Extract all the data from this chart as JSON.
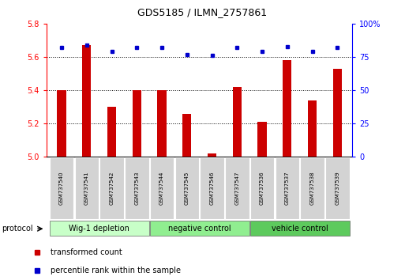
{
  "title": "GDS5185 / ILMN_2757861",
  "samples": [
    "GSM737540",
    "GSM737541",
    "GSM737542",
    "GSM737543",
    "GSM737544",
    "GSM737545",
    "GSM737546",
    "GSM737547",
    "GSM737536",
    "GSM737537",
    "GSM737538",
    "GSM737539"
  ],
  "bar_values": [
    5.4,
    5.67,
    5.3,
    5.4,
    5.4,
    5.26,
    5.02,
    5.42,
    5.21,
    5.58,
    5.34,
    5.53
  ],
  "bar_base": 5.0,
  "dot_values": [
    82,
    84,
    79,
    82,
    82,
    77,
    76,
    82,
    79,
    83,
    79,
    82
  ],
  "ylim_left": [
    5.0,
    5.8
  ],
  "ylim_right": [
    0,
    100
  ],
  "yticks_left": [
    5.0,
    5.2,
    5.4,
    5.6,
    5.8
  ],
  "yticks_right": [
    0,
    25,
    50,
    75,
    100
  ],
  "bar_color": "#cc0000",
  "dot_color": "#0000cc",
  "groups": [
    {
      "label": "Wig-1 depletion",
      "start": 0,
      "end": 4
    },
    {
      "label": "negative control",
      "start": 4,
      "end": 8
    },
    {
      "label": "vehicle control",
      "start": 8,
      "end": 12
    }
  ],
  "group_colors": [
    "#c8ffc8",
    "#90ee90",
    "#5dca5d"
  ],
  "legend_items": [
    {
      "label": "transformed count",
      "color": "#cc0000"
    },
    {
      "label": "percentile rank within the sample",
      "color": "#0000cc"
    }
  ],
  "protocol_label": "protocol",
  "background_color": "white"
}
